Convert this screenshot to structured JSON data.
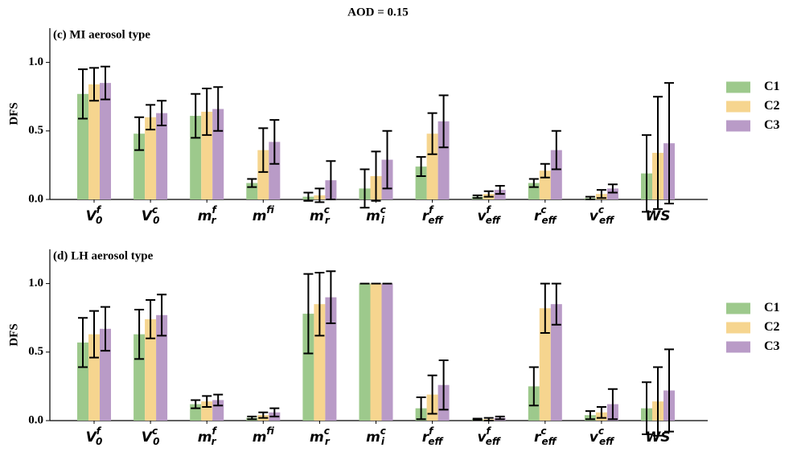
{
  "title": "AOD = 0.15",
  "chart_data": [
    {
      "type": "bar",
      "title": "(c) MI aerosol type",
      "ylabel": "DFS",
      "categories": [
        {
          "base": "V",
          "sub": "0",
          "sup": "f"
        },
        {
          "base": "V",
          "sub": "0",
          "sup": "c"
        },
        {
          "base": "m",
          "sub": "r",
          "sup": "f"
        },
        {
          "base": "m",
          "sub": "i",
          "sup": "f"
        },
        {
          "base": "m",
          "sub": "r",
          "sup": "c"
        },
        {
          "base": "m",
          "sub": "i",
          "sup": "c"
        },
        {
          "base": "r",
          "sub": "eff",
          "sup": "f"
        },
        {
          "base": "v",
          "sub": "eff",
          "sup": "f"
        },
        {
          "base": "r",
          "sub": "eff",
          "sup": "c"
        },
        {
          "base": "v",
          "sub": "eff",
          "sup": "c"
        },
        {
          "base": "WS"
        }
      ],
      "series": [
        {
          "name": "C1",
          "color": "#9dc98c",
          "values": [
            0.77,
            0.48,
            0.61,
            0.12,
            0.02,
            0.08,
            0.24,
            0.02,
            0.12,
            0.01,
            0.19
          ],
          "errors": [
            0.18,
            0.12,
            0.16,
            0.03,
            0.03,
            0.14,
            0.07,
            0.01,
            0.03,
            0.01,
            0.28
          ]
        },
        {
          "name": "C2",
          "color": "#f6d58f",
          "values": [
            0.84,
            0.6,
            0.64,
            0.36,
            0.03,
            0.17,
            0.48,
            0.04,
            0.21,
            0.04,
            0.34
          ],
          "errors": [
            0.12,
            0.09,
            0.17,
            0.16,
            0.05,
            0.18,
            0.15,
            0.02,
            0.05,
            0.03,
            0.41
          ]
        },
        {
          "name": "C3",
          "color": "#b99bc7",
          "values": [
            0.85,
            0.63,
            0.66,
            0.42,
            0.14,
            0.29,
            0.57,
            0.07,
            0.36,
            0.08,
            0.41
          ],
          "errors": [
            0.12,
            0.09,
            0.16,
            0.16,
            0.14,
            0.21,
            0.19,
            0.03,
            0.14,
            0.03,
            0.44
          ]
        }
      ],
      "ylim": [
        0,
        1.25
      ],
      "yticks": [
        {
          "value": 0,
          "label": "0.0"
        },
        {
          "value": 0.5,
          "label": "0.5"
        },
        {
          "value": 1,
          "label": "1.0"
        }
      ],
      "grid": false,
      "legend": "right"
    },
    {
      "type": "bar",
      "title": "(d) LH aerosol type",
      "ylabel": "DFS",
      "categories": [
        {
          "base": "V",
          "sub": "0",
          "sup": "f"
        },
        {
          "base": "V",
          "sub": "0",
          "sup": "c"
        },
        {
          "base": "m",
          "sub": "r",
          "sup": "f"
        },
        {
          "base": "m",
          "sub": "i",
          "sup": "f"
        },
        {
          "base": "m",
          "sub": "r",
          "sup": "c"
        },
        {
          "base": "m",
          "sub": "i",
          "sup": "c"
        },
        {
          "base": "r",
          "sub": "eff",
          "sup": "f"
        },
        {
          "base": "v",
          "sub": "eff",
          "sup": "f"
        },
        {
          "base": "r",
          "sub": "eff",
          "sup": "c"
        },
        {
          "base": "v",
          "sub": "eff",
          "sup": "c"
        },
        {
          "base": "WS"
        }
      ],
      "series": [
        {
          "name": "C1",
          "color": "#9dc98c",
          "values": [
            0.57,
            0.63,
            0.12,
            0.02,
            0.78,
            1.0,
            0.09,
            0.01,
            0.25,
            0.04,
            0.09
          ],
          "errors": [
            0.18,
            0.18,
            0.03,
            0.01,
            0.29,
            0,
            0.08,
            0.005,
            0.14,
            0.03,
            0.19
          ]
        },
        {
          "name": "C2",
          "color": "#f6d58f",
          "values": [
            0.63,
            0.74,
            0.14,
            0.04,
            0.85,
            1.0,
            0.19,
            0.01,
            0.82,
            0.06,
            0.14
          ],
          "errors": [
            0.17,
            0.14,
            0.04,
            0.02,
            0.23,
            0,
            0.14,
            0.01,
            0.18,
            0.04,
            0.25
          ]
        },
        {
          "name": "C3",
          "color": "#b99bc7",
          "values": [
            0.67,
            0.77,
            0.15,
            0.06,
            0.9,
            1.0,
            0.26,
            0.02,
            0.85,
            0.12,
            0.22
          ],
          "errors": [
            0.16,
            0.15,
            0.04,
            0.03,
            0.19,
            0,
            0.18,
            0.01,
            0.15,
            0.11,
            0.3
          ]
        }
      ],
      "ylim": [
        0,
        1.25
      ],
      "yticks": [
        {
          "value": 0,
          "label": "0.0"
        },
        {
          "value": 0.5,
          "label": "0.5"
        },
        {
          "value": 1,
          "label": "1.0"
        }
      ],
      "grid": false,
      "legend": "right"
    }
  ]
}
